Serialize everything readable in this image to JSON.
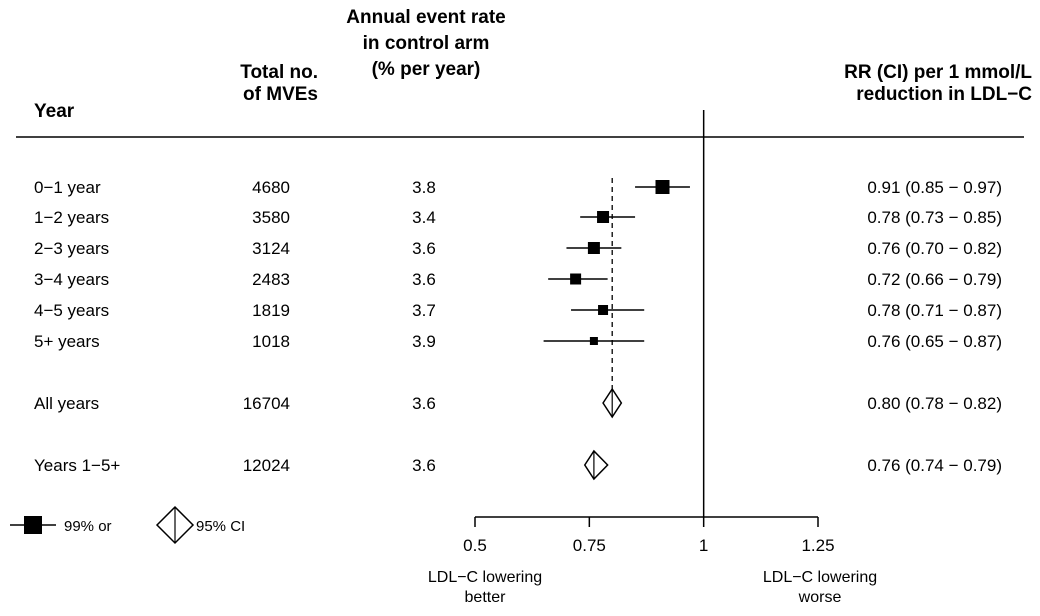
{
  "headers": {
    "year": "Year",
    "total_line1": "Total no.",
    "total_line2": "of MVEs",
    "rate_line1": "Annual event rate",
    "rate_line2": "in control arm",
    "rate_line3": "(% per year)",
    "rr_line1": "RR (CI) per 1 mmol/L",
    "rr_line2": "reduction in LDL−C"
  },
  "legend": {
    "square_label": "99% or",
    "diamond_label": "95% CI"
  },
  "axis_labels": {
    "left_line1": "LDL−C lowering",
    "left_line2": "better",
    "right_line1": "LDL−C lowering",
    "right_line2": "worse"
  },
  "chart_data": {
    "type": "forest",
    "xlim": [
      0.5,
      1.25
    ],
    "xticks": [
      0.5,
      0.75,
      1,
      1.25
    ],
    "xtick_labels": [
      "0.5",
      "0.75",
      "1",
      "1.25"
    ],
    "reference_line": 1,
    "overall_line": 0.8,
    "rows": [
      {
        "label": "0−1 year",
        "total": "4680",
        "rate": "3.8",
        "rr": 0.91,
        "lo": 0.85,
        "hi": 0.97,
        "ci_text": "0.91 (0.85 − 0.97)",
        "marker": "square"
      },
      {
        "label": "1−2 years",
        "total": "3580",
        "rate": "3.4",
        "rr": 0.78,
        "lo": 0.73,
        "hi": 0.85,
        "ci_text": "0.78 (0.73 − 0.85)",
        "marker": "square"
      },
      {
        "label": "2−3 years",
        "total": "3124",
        "rate": "3.6",
        "rr": 0.76,
        "lo": 0.7,
        "hi": 0.82,
        "ci_text": "0.76 (0.70 − 0.82)",
        "marker": "square"
      },
      {
        "label": "3−4 years",
        "total": "2483",
        "rate": "3.6",
        "rr": 0.72,
        "lo": 0.66,
        "hi": 0.79,
        "ci_text": "0.72 (0.66 − 0.79)",
        "marker": "square"
      },
      {
        "label": "4−5 years",
        "total": "1819",
        "rate": "3.7",
        "rr": 0.78,
        "lo": 0.71,
        "hi": 0.87,
        "ci_text": "0.78 (0.71 − 0.87)",
        "marker": "square"
      },
      {
        "label": "5+ years",
        "total": "1018",
        "rate": "3.9",
        "rr": 0.76,
        "lo": 0.65,
        "hi": 0.87,
        "ci_text": "0.76 (0.65 − 0.87)",
        "marker": "square"
      },
      {
        "label": "All years",
        "total": "16704",
        "rate": "3.6",
        "rr": 0.8,
        "lo": 0.78,
        "hi": 0.82,
        "ci_text": "0.80 (0.78 − 0.82)",
        "marker": "diamond"
      },
      {
        "label": "Years 1−5+",
        "total": "12024",
        "rate": "3.6",
        "rr": 0.76,
        "lo": 0.74,
        "hi": 0.79,
        "ci_text": "0.76 (0.74 − 0.79)",
        "marker": "diamond"
      }
    ]
  }
}
